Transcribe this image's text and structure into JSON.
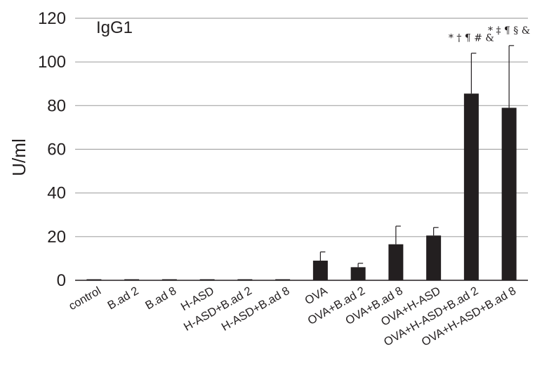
{
  "chart_data": {
    "type": "bar",
    "ylabel": "U/ml",
    "annotation": "IgG1",
    "ylim": [
      0,
      120
    ],
    "yticks": [
      0,
      20,
      40,
      60,
      80,
      100,
      120
    ],
    "grid": true,
    "categories": [
      "control",
      "B.ad 2",
      "B.ad 8",
      "H-ASD",
      "H-ASD+B.ad 2",
      "H-ASD+B.ad 8",
      "OVA",
      "OVA+B.ad 2",
      "OVA+B.ad 8",
      "OVA+H-ASD",
      "OVA+H-ASD+B.ad 2",
      "OVA+H-ASD+B.ad 8"
    ],
    "values": [
      0,
      0,
      0,
      0,
      0,
      0,
      9,
      6,
      16.5,
      20.5,
      85.5,
      79
    ],
    "errors": [
      0,
      0,
      0,
      0,
      0,
      0,
      4,
      1.8,
      8.3,
      3.7,
      18.5,
      28.5
    ],
    "significance": [
      "",
      "",
      "",
      "",
      "",
      "",
      "",
      "",
      "",
      "",
      "* † ¶ # &",
      "* ‡ ¶ § &"
    ],
    "bar_color": "#231f20",
    "grid_color": "#a6a6a6"
  }
}
